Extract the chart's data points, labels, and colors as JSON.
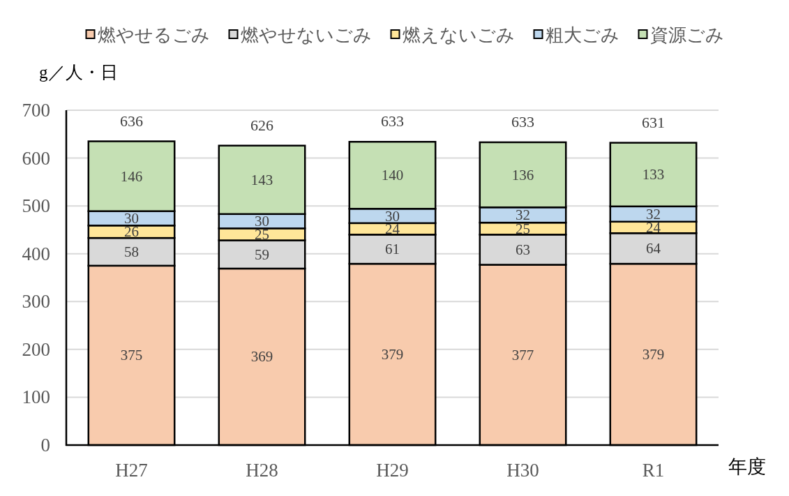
{
  "chart_data": {
    "type": "bar",
    "stacked": true,
    "categories": [
      "H27",
      "H28",
      "H29",
      "H30",
      "R1"
    ],
    "series": [
      {
        "name": "燃やせるごみ",
        "color": "#f8cbad",
        "values": [
          375,
          369,
          379,
          377,
          379
        ]
      },
      {
        "name": "燃やせないごみ",
        "color": "#d9d9d9",
        "values": [
          58,
          59,
          61,
          63,
          64
        ]
      },
      {
        "name": "燃えないごみ",
        "color": "#ffe699",
        "values": [
          26,
          25,
          24,
          25,
          24
        ]
      },
      {
        "name": "粗大ごみ",
        "color": "#bdd7ee",
        "values": [
          30,
          30,
          30,
          32,
          32
        ]
      },
      {
        "name": "資源ごみ",
        "color": "#c5e0b4",
        "values": [
          146,
          143,
          140,
          136,
          133
        ]
      }
    ],
    "totals": [
      "636",
      "626",
      "633",
      "633",
      "631"
    ],
    "ylim": [
      0,
      700
    ],
    "yticks": [
      0,
      100,
      200,
      300,
      400,
      500,
      600,
      700
    ],
    "xlabel": "年度",
    "ylabel": "g／人・日",
    "data_labels": true,
    "grid": "y",
    "legend": "top"
  }
}
